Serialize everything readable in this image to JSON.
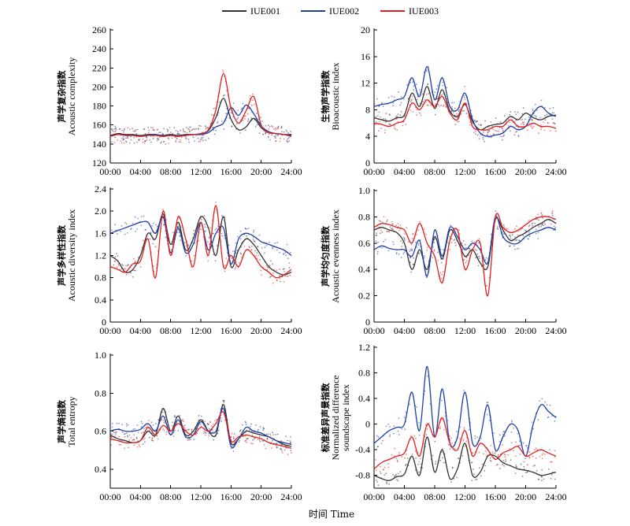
{
  "legend": [
    {
      "name": "IUE001",
      "color": "#333333"
    },
    {
      "name": "IUE002",
      "color": "#1f3fa8"
    },
    {
      "name": "IUE003",
      "color": "#e02020"
    }
  ],
  "x_axis_title": "时间 Time",
  "x_ticks": [
    "00:00",
    "04:00",
    "08:00",
    "12:00",
    "16:00",
    "20:00",
    "24:00"
  ],
  "chart_data": [
    {
      "type": "line",
      "panel": "top-left",
      "ylabel_zh": "声学复杂指数",
      "ylabel_en": "Acoustic complexity",
      "ylim": [
        120,
        260
      ],
      "yticks": [
        120,
        140,
        160,
        180,
        200,
        220,
        240,
        260
      ],
      "ytick_labels": [
        "120",
        "140",
        "160",
        "180",
        "200",
        "220",
        "240",
        "260"
      ],
      "x_hours": [
        0,
        1,
        2,
        3,
        4,
        5,
        6,
        7,
        8,
        9,
        10,
        11,
        12,
        13,
        14,
        15,
        16,
        17,
        18,
        19,
        20,
        21,
        22,
        23,
        24
      ],
      "series": [
        {
          "name": "IUE001",
          "values": [
            149,
            151,
            150,
            150,
            149,
            150,
            150,
            149,
            150,
            149,
            150,
            150,
            151,
            154,
            168,
            188,
            166,
            155,
            158,
            167,
            157,
            152,
            151,
            150,
            149
          ]
        },
        {
          "name": "IUE002",
          "values": [
            148,
            150,
            149,
            149,
            148,
            149,
            150,
            148,
            149,
            148,
            149,
            150,
            150,
            152,
            158,
            162,
            178,
            170,
            181,
            172,
            159,
            153,
            151,
            150,
            150
          ]
        },
        {
          "name": "IUE003",
          "values": [
            148,
            150,
            149,
            149,
            148,
            149,
            149,
            148,
            149,
            148,
            149,
            150,
            151,
            155,
            176,
            214,
            178,
            162,
            175,
            190,
            160,
            152,
            151,
            150,
            148
          ]
        }
      ]
    },
    {
      "type": "line",
      "panel": "top-right",
      "ylabel_zh": "生物声学指数",
      "ylabel_en": "Bioacoustic index",
      "ylim": [
        0,
        20
      ],
      "yticks": [
        0,
        4,
        8,
        12,
        16,
        20
      ],
      "ytick_labels": [
        "0",
        "4",
        "8",
        "12",
        "16",
        "20"
      ],
      "x_hours": [
        0,
        1,
        2,
        3,
        4,
        5,
        6,
        7,
        8,
        9,
        10,
        11,
        12,
        13,
        14,
        15,
        16,
        17,
        18,
        19,
        20,
        21,
        22,
        23,
        24
      ],
      "series": [
        {
          "name": "IUE001",
          "values": [
            6.8,
            6.5,
            6.3,
            6.8,
            7.2,
            10.5,
            8.5,
            11.5,
            8.2,
            11.0,
            7.8,
            7.0,
            8.8,
            6.2,
            5.0,
            5.5,
            5.8,
            6.0,
            7.0,
            6.5,
            7.5,
            6.8,
            6.5,
            7.0,
            7.2
          ]
        },
        {
          "name": "IUE002",
          "values": [
            8.5,
            8.8,
            9.0,
            9.5,
            10.0,
            12.8,
            10.0,
            14.5,
            9.5,
            12.8,
            8.5,
            8.0,
            10.5,
            6.5,
            4.5,
            4.0,
            4.2,
            4.5,
            5.5,
            5.0,
            5.5,
            7.5,
            8.5,
            7.5,
            7.0
          ]
        },
        {
          "name": "IUE003",
          "values": [
            6.0,
            5.8,
            5.5,
            6.0,
            6.5,
            9.0,
            8.0,
            9.5,
            8.5,
            10.0,
            7.5,
            6.5,
            9.0,
            5.5,
            5.0,
            5.0,
            5.5,
            5.5,
            6.5,
            5.5,
            5.5,
            6.0,
            5.5,
            5.5,
            5.2
          ]
        }
      ]
    },
    {
      "type": "line",
      "panel": "middle-left",
      "ylabel_zh": "声学多样性指数",
      "ylabel_en": "Acoustic diversity index",
      "ylim": [
        0,
        2.4
      ],
      "yticks": [
        0,
        0.4,
        0.8,
        1.2,
        1.6,
        2.0,
        2.4
      ],
      "ytick_labels": [
        "0",
        "0.4",
        "0.8",
        "1.2",
        "1.6",
        "2.0",
        "2.4"
      ],
      "x_hours": [
        0,
        1,
        2,
        3,
        4,
        5,
        6,
        7,
        8,
        9,
        10,
        11,
        12,
        13,
        14,
        15,
        16,
        17,
        18,
        19,
        20,
        21,
        22,
        23,
        24
      ],
      "series": [
        {
          "name": "IUE001",
          "values": [
            1.2,
            1.1,
            0.9,
            0.95,
            1.2,
            1.6,
            1.5,
            1.95,
            1.4,
            1.8,
            1.3,
            1.5,
            1.9,
            1.7,
            1.2,
            1.9,
            1.0,
            1.3,
            1.5,
            1.4,
            1.2,
            1.0,
            0.9,
            0.85,
            0.9
          ]
        },
        {
          "name": "IUE002",
          "values": [
            1.6,
            1.65,
            1.7,
            1.75,
            1.8,
            1.8,
            1.6,
            1.9,
            1.25,
            1.7,
            1.25,
            1.4,
            1.8,
            1.3,
            1.6,
            1.7,
            1.05,
            1.5,
            1.6,
            1.55,
            1.45,
            1.4,
            1.35,
            1.3,
            1.2
          ]
        },
        {
          "name": "IUE003",
          "values": [
            1.0,
            0.95,
            0.9,
            1.05,
            1.1,
            1.5,
            0.8,
            2.0,
            1.2,
            1.9,
            1.5,
            1.0,
            1.8,
            1.2,
            2.1,
            1.0,
            1.2,
            1.0,
            1.3,
            1.2,
            1.0,
            0.9,
            0.8,
            0.85,
            0.95
          ]
        }
      ]
    },
    {
      "type": "line",
      "panel": "middle-right",
      "ylabel_zh": "声学均匀度指数",
      "ylabel_en": "Acoustic evenness index",
      "ylim": [
        0,
        1.0
      ],
      "yticks": [
        0,
        0.2,
        0.4,
        0.6,
        0.8,
        1.0
      ],
      "ytick_labels": [
        "0",
        "0.2",
        "0.4",
        "0.6",
        "0.8",
        "1.0"
      ],
      "x_hours": [
        0,
        1,
        2,
        3,
        4,
        5,
        6,
        7,
        8,
        9,
        10,
        11,
        12,
        13,
        14,
        15,
        16,
        17,
        18,
        19,
        20,
        21,
        22,
        23,
        24
      ],
      "series": [
        {
          "name": "IUE001",
          "values": [
            0.7,
            0.72,
            0.7,
            0.68,
            0.6,
            0.4,
            0.55,
            0.4,
            0.65,
            0.48,
            0.7,
            0.62,
            0.5,
            0.55,
            0.45,
            0.42,
            0.78,
            0.7,
            0.62,
            0.65,
            0.68,
            0.72,
            0.75,
            0.78,
            0.75
          ]
        },
        {
          "name": "IUE002",
          "values": [
            0.55,
            0.58,
            0.56,
            0.55,
            0.55,
            0.5,
            0.62,
            0.35,
            0.7,
            0.5,
            0.72,
            0.65,
            0.55,
            0.6,
            0.55,
            0.45,
            0.8,
            0.65,
            0.6,
            0.6,
            0.65,
            0.68,
            0.7,
            0.72,
            0.7
          ]
        },
        {
          "name": "IUE003",
          "values": [
            0.72,
            0.75,
            0.74,
            0.72,
            0.7,
            0.6,
            0.75,
            0.6,
            0.5,
            0.3,
            0.62,
            0.7,
            0.4,
            0.55,
            0.6,
            0.2,
            0.8,
            0.72,
            0.68,
            0.7,
            0.74,
            0.78,
            0.8,
            0.8,
            0.78
          ]
        }
      ]
    },
    {
      "type": "line",
      "panel": "bottom-left",
      "ylabel_zh": "声学熵指数",
      "ylabel_en": "Total entropy",
      "ylim": [
        0.3,
        1.0
      ],
      "yticks": [
        0.4,
        0.6,
        0.8,
        1.0
      ],
      "ytick_labels": [
        "0.4",
        "0.6",
        "0.8",
        "1.0"
      ],
      "x_hours": [
        0,
        1,
        2,
        3,
        4,
        5,
        6,
        7,
        8,
        9,
        10,
        11,
        12,
        13,
        14,
        15,
        16,
        17,
        18,
        19,
        20,
        21,
        22,
        23,
        24
      ],
      "series": [
        {
          "name": "IUE001",
          "values": [
            0.58,
            0.56,
            0.55,
            0.54,
            0.55,
            0.6,
            0.58,
            0.72,
            0.6,
            0.68,
            0.58,
            0.6,
            0.66,
            0.6,
            0.58,
            0.74,
            0.54,
            0.56,
            0.6,
            0.59,
            0.58,
            0.57,
            0.55,
            0.53,
            0.52
          ]
        },
        {
          "name": "IUE002",
          "values": [
            0.6,
            0.61,
            0.6,
            0.6,
            0.61,
            0.64,
            0.6,
            0.68,
            0.58,
            0.66,
            0.57,
            0.58,
            0.65,
            0.6,
            0.6,
            0.72,
            0.52,
            0.56,
            0.62,
            0.6,
            0.59,
            0.57,
            0.55,
            0.54,
            0.53
          ]
        },
        {
          "name": "IUE003",
          "values": [
            0.56,
            0.55,
            0.54,
            0.54,
            0.55,
            0.62,
            0.58,
            0.63,
            0.6,
            0.64,
            0.6,
            0.58,
            0.62,
            0.6,
            0.64,
            0.7,
            0.55,
            0.57,
            0.58,
            0.57,
            0.56,
            0.54,
            0.53,
            0.52,
            0.51
          ]
        }
      ]
    },
    {
      "type": "line",
      "panel": "bottom-right",
      "ylabel_zh": "标准差异声景指数",
      "ylabel_en": "Normalized difference soundscape index",
      "ylim": [
        -1.0,
        1.2
      ],
      "yticks": [
        -0.8,
        -0.4,
        0,
        0.4,
        0.8,
        1.2
      ],
      "ytick_labels": [
        "-0.8",
        "-0.4",
        "0",
        "0.4",
        "0.8",
        "1.2"
      ],
      "x_hours": [
        0,
        1,
        2,
        3,
        4,
        5,
        6,
        7,
        8,
        9,
        10,
        11,
        12,
        13,
        14,
        15,
        16,
        17,
        18,
        19,
        20,
        21,
        22,
        23,
        24
      ],
      "series": [
        {
          "name": "IUE001",
          "values": [
            -0.8,
            -0.85,
            -0.88,
            -0.82,
            -0.78,
            -0.5,
            -0.8,
            -0.2,
            -0.75,
            -0.4,
            -0.85,
            -0.7,
            -0.3,
            -0.8,
            -0.75,
            -0.5,
            -0.5,
            -0.6,
            -0.65,
            -0.7,
            -0.72,
            -0.75,
            -0.8,
            -0.78,
            -0.75
          ]
        },
        {
          "name": "IUE002",
          "values": [
            -0.3,
            -0.2,
            -0.1,
            -0.05,
            0.0,
            0.5,
            -0.1,
            0.9,
            -0.2,
            0.55,
            -0.3,
            -0.2,
            0.5,
            -0.3,
            -0.2,
            0.3,
            -0.4,
            -0.2,
            0.0,
            -0.1,
            -0.5,
            0.0,
            0.3,
            0.2,
            0.1
          ]
        },
        {
          "name": "IUE003",
          "values": [
            -0.7,
            -0.6,
            -0.55,
            -0.5,
            -0.45,
            -0.2,
            -0.5,
            0.0,
            -0.2,
            0.1,
            -0.3,
            -0.4,
            -0.1,
            -0.5,
            -0.3,
            -0.4,
            -0.55,
            -0.45,
            -0.4,
            -0.35,
            -0.5,
            -0.45,
            -0.4,
            -0.45,
            -0.5
          ]
        }
      ]
    }
  ]
}
